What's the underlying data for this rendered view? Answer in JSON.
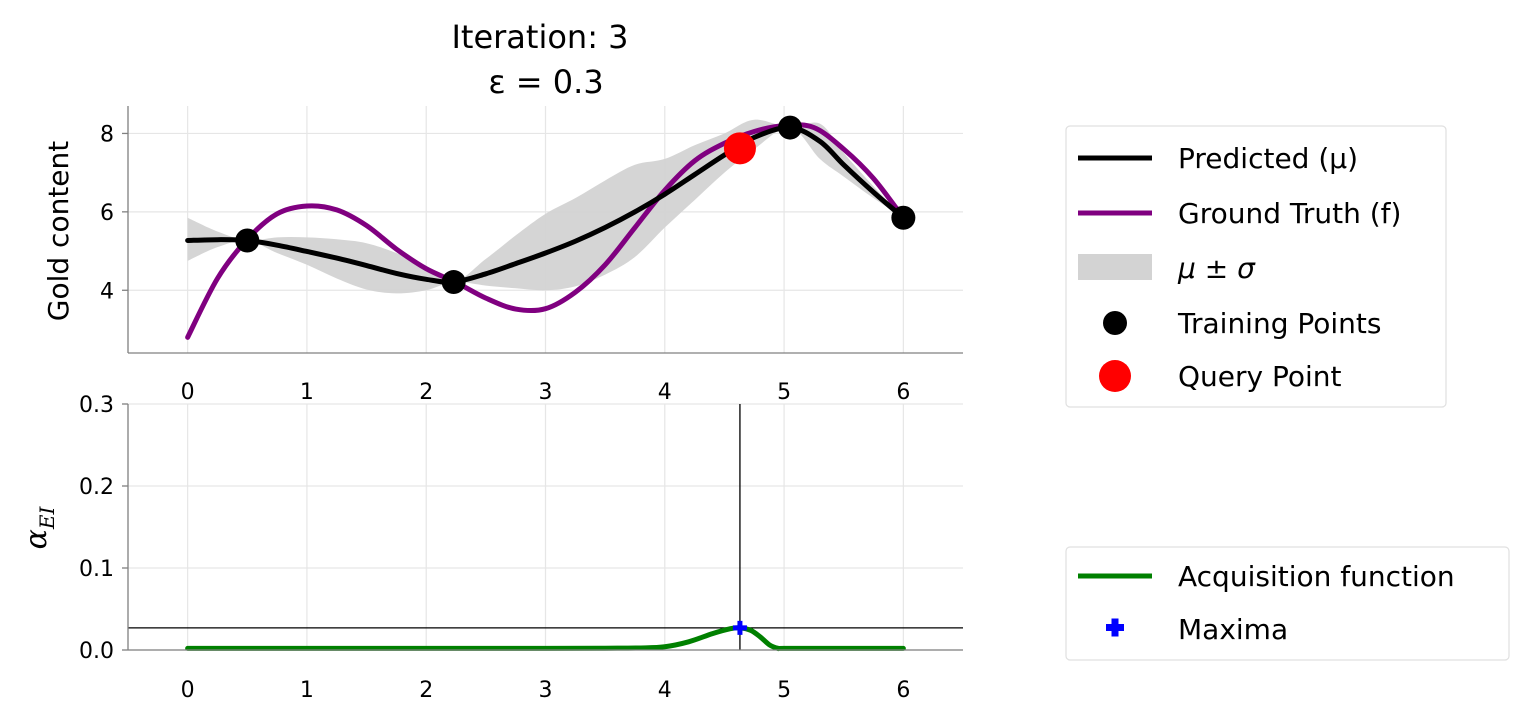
{
  "chart_data": [
    {
      "type": "line",
      "title": "Iteration: 3",
      "subtitle": "ε = 0.3",
      "ylabel": "Gold content",
      "xlim": [
        -0.5,
        6.5
      ],
      "ylim": [
        2.4,
        8.7
      ],
      "xticks": [
        0,
        1,
        2,
        3,
        4,
        5,
        6
      ],
      "yticks": [
        4,
        6,
        8
      ],
      "grid": true,
      "legend_placement": "outside-right",
      "series": [
        {
          "name": "Predicted (μ)",
          "color": "#000000",
          "x": [
            0,
            0.25,
            0.5,
            0.75,
            1.0,
            1.25,
            1.5,
            1.75,
            2.0,
            2.23,
            2.5,
            2.75,
            3.0,
            3.25,
            3.5,
            3.75,
            4.0,
            4.25,
            4.5,
            4.75,
            5.05,
            5.3,
            5.5,
            5.75,
            6.0
          ],
          "y": [
            5.27,
            5.29,
            5.27,
            5.15,
            4.99,
            4.82,
            4.63,
            4.43,
            4.28,
            4.21,
            4.42,
            4.68,
            4.95,
            5.25,
            5.6,
            6.0,
            6.45,
            6.95,
            7.45,
            7.9,
            8.15,
            7.8,
            7.2,
            6.5,
            5.85
          ]
        },
        {
          "name": "Ground Truth (f)",
          "color": "#800080",
          "x": [
            0,
            0.25,
            0.5,
            0.75,
            1.0,
            1.25,
            1.5,
            1.75,
            2.0,
            2.25,
            2.5,
            2.75,
            3.0,
            3.25,
            3.5,
            3.75,
            4.0,
            4.25,
            4.5,
            4.75,
            5.0,
            5.25,
            5.5,
            5.75,
            6.0
          ],
          "y": [
            2.8,
            4.3,
            5.3,
            5.95,
            6.15,
            6.05,
            5.65,
            5.05,
            4.55,
            4.2,
            3.8,
            3.52,
            3.53,
            3.95,
            4.65,
            5.6,
            6.55,
            7.3,
            7.75,
            8.05,
            8.2,
            8.15,
            7.6,
            6.85,
            5.85
          ]
        }
      ],
      "band": {
        "name": "μ ± σ",
        "color": "#d3d3d3",
        "x": [
          0,
          0.25,
          0.5,
          0.75,
          1.0,
          1.25,
          1.5,
          1.75,
          2.0,
          2.23,
          2.5,
          2.75,
          3.0,
          3.25,
          3.5,
          3.75,
          4.0,
          4.25,
          4.5,
          4.75,
          5.05,
          5.3,
          5.5,
          5.75,
          6.0
        ],
        "lower": [
          4.75,
          5.1,
          5.27,
          4.95,
          4.65,
          4.3,
          4.02,
          3.92,
          4.0,
          4.21,
          4.12,
          4.05,
          4.0,
          4.1,
          4.4,
          4.85,
          5.6,
          6.3,
          7.0,
          7.6,
          8.15,
          7.35,
          6.9,
          6.35,
          5.85
        ],
        "upper": [
          5.85,
          5.5,
          5.27,
          5.35,
          5.35,
          5.3,
          5.2,
          4.95,
          4.6,
          4.21,
          4.8,
          5.4,
          5.95,
          6.35,
          6.8,
          7.2,
          7.35,
          7.7,
          8.0,
          8.35,
          8.15,
          8.25,
          7.5,
          6.65,
          5.85
        ]
      },
      "scatter": [
        {
          "name": "Training Points",
          "color": "#000000",
          "points": [
            [
              0.5,
              5.27
            ],
            [
              2.23,
              4.21
            ],
            [
              5.05,
              8.15
            ],
            [
              6.0,
              5.85
            ]
          ]
        },
        {
          "name": "Query Point",
          "color": "#ff0000",
          "points": [
            [
              4.63,
              7.62
            ]
          ]
        }
      ]
    },
    {
      "type": "line",
      "ylabel": "α_EI",
      "xlim": [
        -0.5,
        6.5
      ],
      "ylim": [
        0.0,
        0.3
      ],
      "xticks": [
        0,
        1,
        2,
        3,
        4,
        5,
        6
      ],
      "yticks": [
        0.0,
        0.1,
        0.2,
        0.3
      ],
      "ytick_labels": [
        "0.0",
        "0.1",
        "0.2",
        "0.3"
      ],
      "grid": true,
      "legend_placement": "outside-right",
      "series": [
        {
          "name": "Acquisition function",
          "color": "#008000",
          "x": [
            0,
            1,
            2,
            3,
            3.5,
            3.8,
            4.0,
            4.2,
            4.4,
            4.55,
            4.63,
            4.72,
            4.8,
            4.88,
            4.95,
            5.0,
            5.5,
            6.0
          ],
          "y": [
            0.002,
            0.002,
            0.002,
            0.002,
            0.0022,
            0.0025,
            0.004,
            0.01,
            0.02,
            0.026,
            0.027,
            0.024,
            0.016,
            0.006,
            0.002,
            0.002,
            0.002,
            0.002
          ]
        }
      ],
      "maxima": {
        "name": "Maxima",
        "color": "#0000ff",
        "x": 4.63,
        "y": 0.027
      }
    }
  ]
}
